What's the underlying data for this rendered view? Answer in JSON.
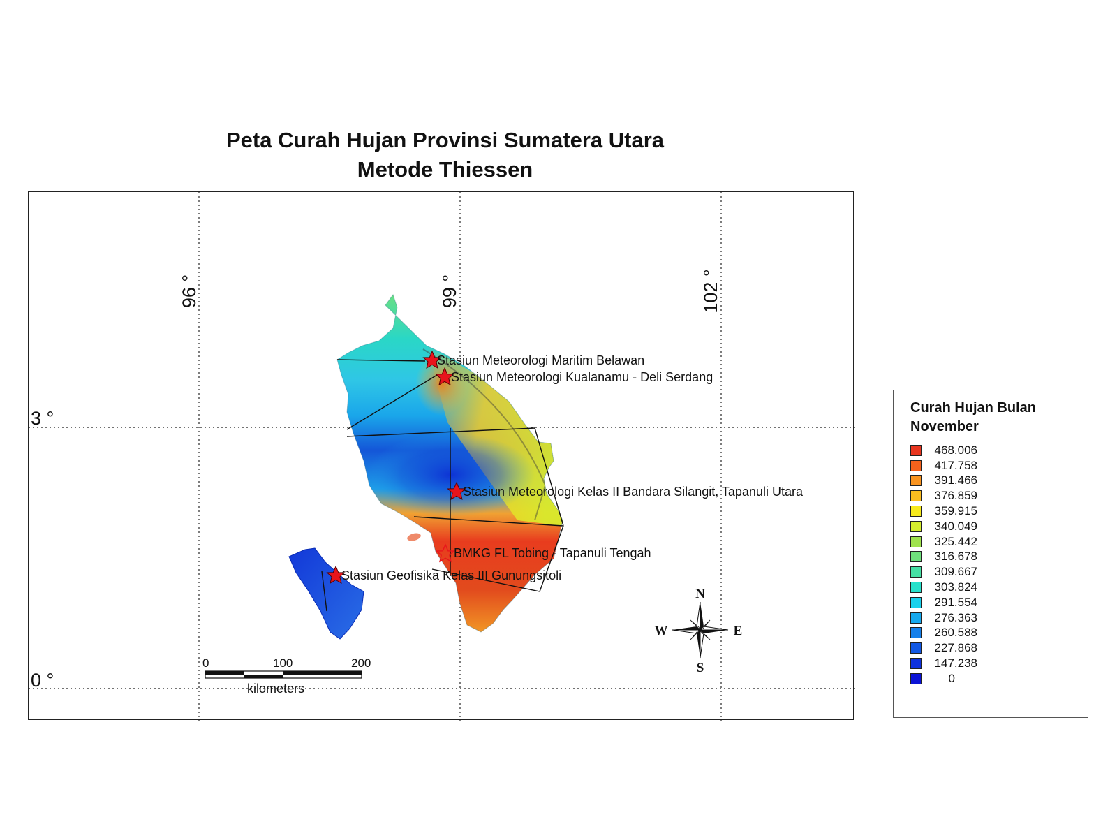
{
  "title": {
    "line1": "Peta Curah Hujan Provinsi Sumatera Utara",
    "line2": "Metode Thiessen"
  },
  "map": {
    "longitude_labels": [
      "96 °",
      "99 °",
      "102 °"
    ],
    "latitude_labels": [
      "3 °",
      "0 °"
    ],
    "stations": [
      {
        "name": "Stasiun Meteorologi Maritim Belawan",
        "marker": "filled"
      },
      {
        "name": "Stasiun Meteorologi Kualanamu - Deli Serdang",
        "marker": "filled"
      },
      {
        "name": "Stasiun Meteorologi Kelas II Bandara Silangit, Tapanuli Utara",
        "marker": "filled"
      },
      {
        "name": "BMKG FL Tobing - Tapanuli Tengah",
        "marker": "outline"
      },
      {
        "name": "Stasiun Geofisika Kelas III Gunungsitoli",
        "marker": "filled"
      }
    ],
    "scale_bar": {
      "ticks": [
        "0",
        "100",
        "200"
      ],
      "unit": "kilometers"
    },
    "compass": {
      "n": "N",
      "s": "S",
      "e": "E",
      "w": "W"
    },
    "colors": {
      "station_marker": "#e8141c",
      "thiessen_lines": "#111111"
    }
  },
  "legend": {
    "title": "Curah Hujan Bulan November",
    "items": [
      {
        "value": "468.006",
        "color": "#e8361f"
      },
      {
        "value": "417.758",
        "color": "#f4621c"
      },
      {
        "value": "391.466",
        "color": "#f99420"
      },
      {
        "value": "376.859",
        "color": "#fbbd1f"
      },
      {
        "value": "359.915",
        "color": "#f7ea1b"
      },
      {
        "value": "340.049",
        "color": "#d6ee2e"
      },
      {
        "value": "325.442",
        "color": "#9fe34d"
      },
      {
        "value": "316.678",
        "color": "#6fe07c"
      },
      {
        "value": "309.667",
        "color": "#46e0a4"
      },
      {
        "value": "303.824",
        "color": "#27e1cb"
      },
      {
        "value": "291.554",
        "color": "#1ad1ec"
      },
      {
        "value": "276.363",
        "color": "#17a9ee"
      },
      {
        "value": "260.588",
        "color": "#1680ea"
      },
      {
        "value": "227.868",
        "color": "#1258e4"
      },
      {
        "value": "147.238",
        "color": "#0f32dd"
      },
      {
        "value": "0",
        "color": "#0c14d6"
      }
    ]
  }
}
